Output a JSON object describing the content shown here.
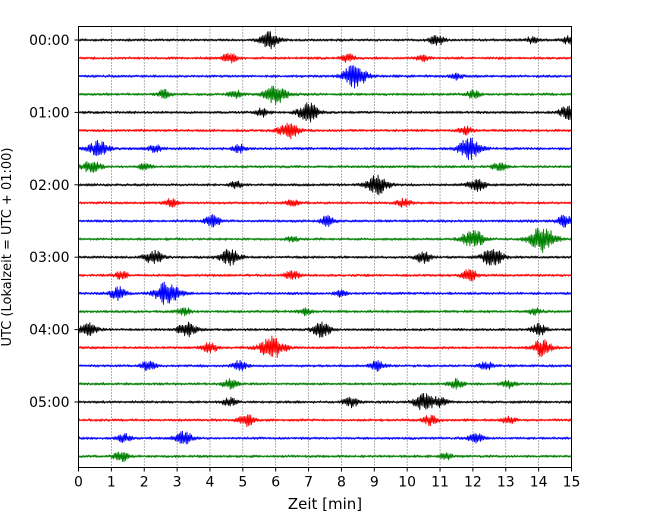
{
  "chart_data": {
    "type": "line",
    "title": "",
    "xlabel": "Zeit  [min]",
    "ylabel": "UTC (Lokalzeit = UTC + 01:00)",
    "xlim": [
      0,
      15
    ],
    "x_ticks": [
      "0",
      "1",
      "2",
      "3",
      "4",
      "5",
      "6",
      "7",
      "8",
      "9",
      "10",
      "11",
      "12",
      "13",
      "14",
      "15"
    ],
    "y_ticks": [
      "00:00",
      "01:00",
      "02:00",
      "03:00",
      "04:00",
      "05:00"
    ],
    "trace_interval_min": 15,
    "trace_count": 24,
    "grid": "vertical dotted",
    "colors": [
      "#000000",
      "#ff0000",
      "#0000ff",
      "#008000"
    ],
    "traces": [
      {
        "start": "00:00",
        "bursts": [
          [
            5.8,
            1.0
          ],
          [
            10.9,
            0.6
          ],
          [
            13.8,
            0.4
          ],
          [
            14.9,
            0.5
          ]
        ]
      },
      {
        "start": "00:15",
        "bursts": [
          [
            4.6,
            0.6
          ],
          [
            8.2,
            0.5
          ],
          [
            10.5,
            0.4
          ]
        ]
      },
      {
        "start": "00:30",
        "bursts": [
          [
            8.4,
            1.4
          ],
          [
            11.5,
            0.4
          ]
        ]
      },
      {
        "start": "00:45",
        "bursts": [
          [
            2.6,
            0.5
          ],
          [
            4.8,
            0.5
          ],
          [
            6.0,
            1.2
          ],
          [
            12.0,
            0.5
          ]
        ]
      },
      {
        "start": "01:00",
        "bursts": [
          [
            7.0,
            1.1
          ],
          [
            5.6,
            0.5
          ],
          [
            14.9,
            0.8
          ]
        ]
      },
      {
        "start": "01:15",
        "bursts": [
          [
            6.4,
            1.0
          ],
          [
            11.8,
            0.5
          ]
        ]
      },
      {
        "start": "01:30",
        "bursts": [
          [
            0.6,
            1.0
          ],
          [
            2.3,
            0.5
          ],
          [
            4.9,
            0.5
          ],
          [
            11.9,
            1.3
          ]
        ]
      },
      {
        "start": "01:45",
        "bursts": [
          [
            0.4,
            0.8
          ],
          [
            2.0,
            0.4
          ],
          [
            12.8,
            0.5
          ]
        ]
      },
      {
        "start": "02:00",
        "bursts": [
          [
            9.1,
            1.2
          ],
          [
            12.1,
            0.8
          ],
          [
            4.8,
            0.4
          ]
        ]
      },
      {
        "start": "02:15",
        "bursts": [
          [
            2.8,
            0.5
          ],
          [
            9.9,
            0.5
          ],
          [
            6.5,
            0.4
          ]
        ]
      },
      {
        "start": "02:30",
        "bursts": [
          [
            4.1,
            0.7
          ],
          [
            7.6,
            0.6
          ],
          [
            14.8,
            0.7
          ]
        ]
      },
      {
        "start": "02:45",
        "bursts": [
          [
            12.0,
            1.2
          ],
          [
            14.1,
            1.6
          ],
          [
            6.5,
            0.4
          ]
        ]
      },
      {
        "start": "03:00",
        "bursts": [
          [
            2.3,
            0.9
          ],
          [
            4.6,
            1.0
          ],
          [
            10.5,
            0.7
          ],
          [
            12.6,
            1.1
          ]
        ]
      },
      {
        "start": "03:15",
        "bursts": [
          [
            1.3,
            0.5
          ],
          [
            6.5,
            0.6
          ],
          [
            11.9,
            0.7
          ]
        ]
      },
      {
        "start": "03:30",
        "bursts": [
          [
            1.2,
            0.8
          ],
          [
            2.7,
            1.4
          ],
          [
            8.0,
            0.4
          ]
        ]
      },
      {
        "start": "03:45",
        "bursts": [
          [
            3.2,
            0.5
          ],
          [
            6.9,
            0.4
          ],
          [
            13.9,
            0.4
          ]
        ]
      },
      {
        "start": "04:00",
        "bursts": [
          [
            0.3,
            0.8
          ],
          [
            3.3,
            0.9
          ],
          [
            7.4,
            0.9
          ],
          [
            14.0,
            0.7
          ]
        ]
      },
      {
        "start": "04:15",
        "bursts": [
          [
            4.0,
            0.6
          ],
          [
            5.9,
            1.4
          ],
          [
            14.1,
            1.0
          ]
        ]
      },
      {
        "start": "04:30",
        "bursts": [
          [
            2.1,
            0.6
          ],
          [
            4.9,
            0.6
          ],
          [
            9.1,
            0.6
          ],
          [
            12.4,
            0.5
          ]
        ]
      },
      {
        "start": "04:45",
        "bursts": [
          [
            4.6,
            0.6
          ],
          [
            11.5,
            0.6
          ],
          [
            13.1,
            0.5
          ]
        ]
      },
      {
        "start": "05:00",
        "bursts": [
          [
            4.6,
            0.5
          ],
          [
            8.3,
            0.6
          ],
          [
            10.5,
            1.0
          ],
          [
            11.0,
            0.6
          ]
        ]
      },
      {
        "start": "05:15",
        "bursts": [
          [
            5.1,
            0.7
          ],
          [
            10.7,
            0.6
          ],
          [
            13.1,
            0.5
          ]
        ]
      },
      {
        "start": "05:30",
        "bursts": [
          [
            1.4,
            0.5
          ],
          [
            3.2,
            0.8
          ],
          [
            12.1,
            0.6
          ]
        ]
      },
      {
        "start": "05:45",
        "bursts": [
          [
            1.3,
            0.6
          ],
          [
            11.2,
            0.4
          ]
        ]
      }
    ]
  }
}
